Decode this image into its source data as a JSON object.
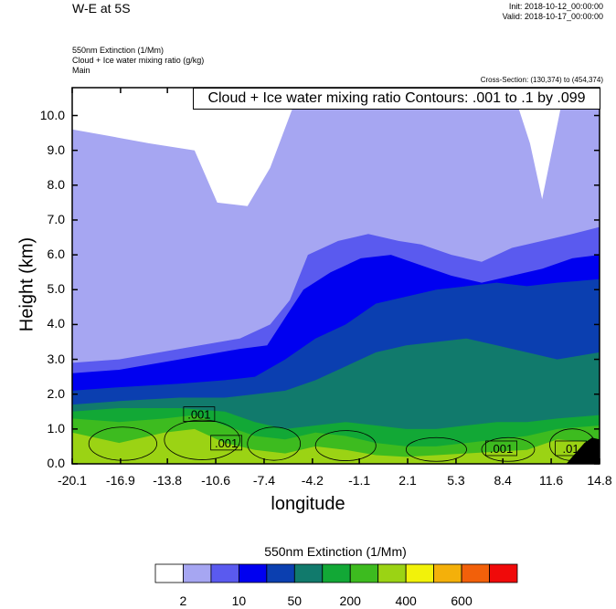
{
  "header": {
    "title": "W-E at 5S",
    "init": "Init: 2018-10-12_00:00:00",
    "valid": "Valid: 2018-10-17_00:00:00",
    "field_line1": "550nm Extinction   (1/Mm)",
    "field_line2": "Cloud + Ice water mixing ratio   (g/kg)",
    "field_line3": "Main",
    "cross_section": "Cross-Section: (130,374) to (454,374)",
    "contour_info": "Cloud + Ice water mixing ratio Contours: .001 to .1 by .099"
  },
  "chart_data": {
    "type": "heatmap",
    "xlabel": "longitude",
    "ylabel": "Height (km)",
    "xlim": [
      -20.1,
      14.8
    ],
    "ylim": [
      0.0,
      10.8
    ],
    "x_ticks": [
      "-20.1",
      "-16.9",
      "-13.8",
      "-10.6",
      "-7.4",
      "-4.2",
      "-1.1",
      "2.1",
      "5.3",
      "8.4",
      "11.6",
      "14.8"
    ],
    "y_ticks": [
      "0.0",
      "1.0",
      "2.0",
      "3.0",
      "4.0",
      "5.0",
      "6.0",
      "7.0",
      "8.0",
      "9.0",
      "10.0"
    ],
    "contour_labels": [
      ".001",
      ".001",
      ".001",
      ".01"
    ],
    "colorbar": {
      "title": "550nm Extinction  (1/Mm)",
      "labels": [
        "2",
        "10",
        "50",
        "200",
        "400",
        "600"
      ],
      "colors": [
        "#ffffff",
        "#a6a6f2",
        "#5a5aef",
        "#0000f0",
        "#0b3fb0",
        "#117a6c",
        "#12a836",
        "#3dbb1f",
        "#9bd314",
        "#f2f20a",
        "#f4b00a",
        "#f2600a",
        "#f00a0a"
      ]
    },
    "layers": [
      {
        "name": "very light",
        "color": "#a6a6f2"
      },
      {
        "name": "light",
        "color": "#5a5aef"
      },
      {
        "name": "blue",
        "color": "#0000f0"
      },
      {
        "name": "dark blue",
        "color": "#0b3fb0"
      },
      {
        "name": "teal",
        "color": "#117a6c"
      },
      {
        "name": "green",
        "color": "#12a836"
      },
      {
        "name": "light green",
        "color": "#3dbb1f"
      },
      {
        "name": "yellow green",
        "color": "#9bd314"
      }
    ]
  }
}
